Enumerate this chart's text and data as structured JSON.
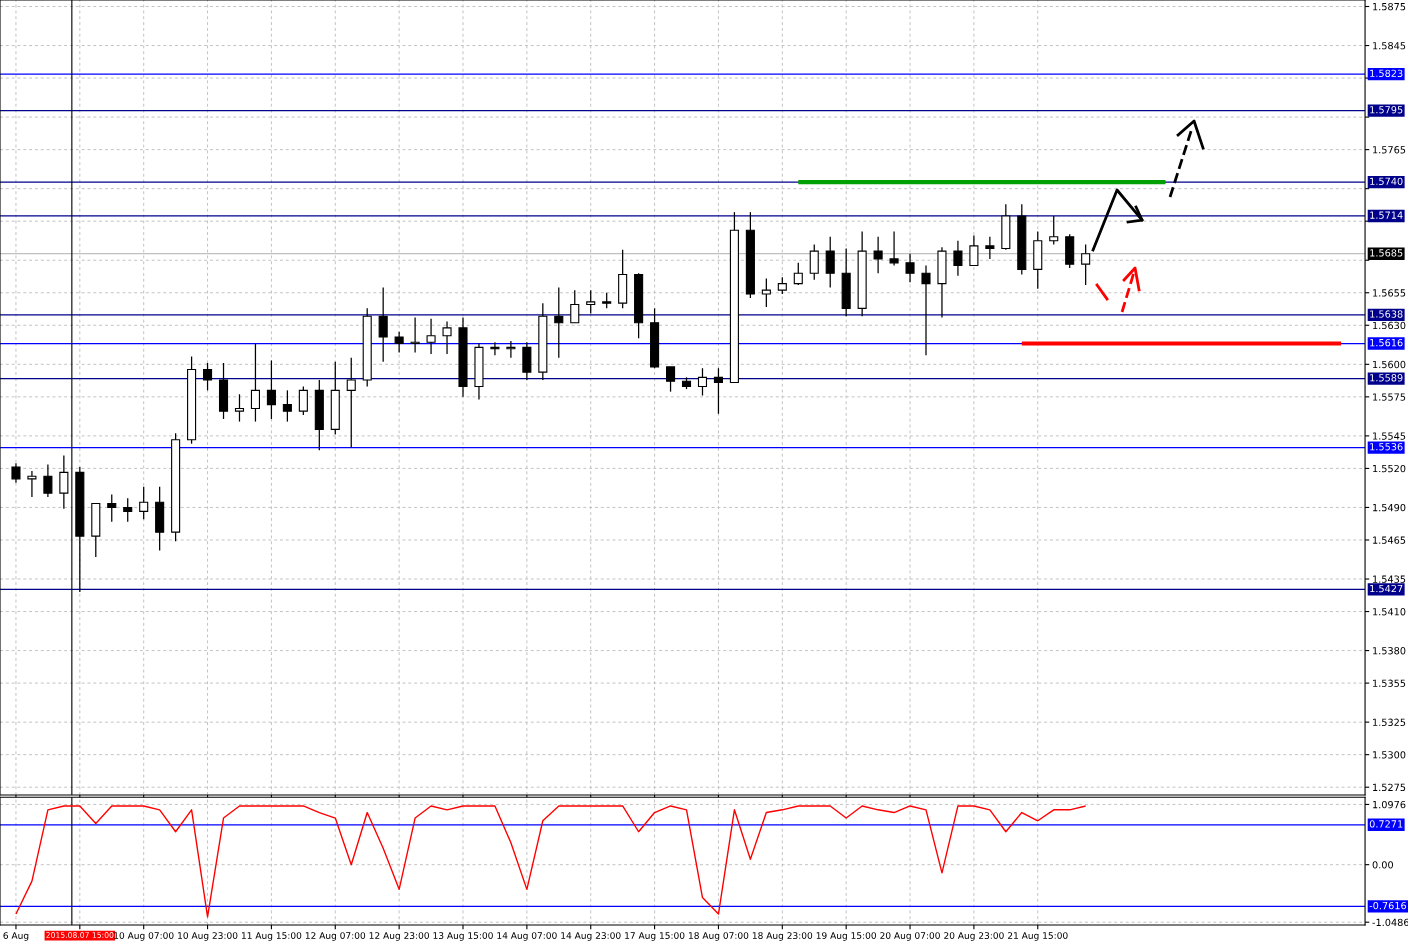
{
  "chart_data": [
    {
      "type": "candlestick",
      "tick_labels": "y",
      "grid": true,
      "categories": [
        "6 Aug",
        null,
        null,
        null,
        "2015.08.07 15:00",
        null,
        null,
        null,
        "10 Aug 07:00",
        null,
        null,
        null,
        "10 Aug 23:00",
        null,
        null,
        null,
        "11 Aug 15:00",
        null,
        null,
        null,
        "12 Aug 07:00",
        null,
        null,
        null,
        "12 Aug 23:00",
        null,
        null,
        null,
        "13 Aug 15:00",
        null,
        null,
        null,
        "14 Aug 07:00",
        null,
        null,
        null,
        "14 Aug 23:00",
        null,
        null,
        null,
        "17 Aug 15:00",
        null,
        null,
        null,
        "18 Aug 07:00",
        null,
        null,
        null,
        "18 Aug 23:00",
        null,
        null,
        null,
        "19 Aug 15:00",
        null,
        null,
        null,
        "20 Aug 07:00",
        null,
        null,
        null,
        "20 Aug 23:00",
        null,
        null,
        null,
        "21 Aug 15:00",
        null,
        null,
        null,
        null,
        null,
        null,
        null,
        null,
        null,
        null,
        null,
        null,
        null,
        null,
        null,
        null,
        null,
        null,
        null,
        null
      ],
      "ohlc": [
        [
          1.5521,
          1.5524,
          1.5509,
          1.5512
        ],
        [
          1.5512,
          1.5518,
          1.5498,
          1.5514
        ],
        [
          1.5514,
          1.5523,
          1.5498,
          1.5501
        ],
        [
          1.5501,
          1.553,
          1.5489,
          1.5517
        ],
        [
          1.5517,
          1.5521,
          1.5425,
          1.5468
        ],
        [
          1.5468,
          1.5493,
          1.5452,
          1.5493
        ],
        [
          1.5493,
          1.55,
          1.5479,
          1.549
        ],
        [
          1.549,
          1.5497,
          1.5479,
          1.5487
        ],
        [
          1.5487,
          1.5506,
          1.5481,
          1.5494
        ],
        [
          1.5494,
          1.5506,
          1.5457,
          1.5471
        ],
        [
          1.5471,
          1.5547,
          1.5464,
          1.5542
        ],
        [
          1.5542,
          1.5606,
          1.5539,
          1.5596
        ],
        [
          1.5596,
          1.5601,
          1.558,
          1.5588
        ],
        [
          1.5588,
          1.5601,
          1.5558,
          1.5564
        ],
        [
          1.5564,
          1.5577,
          1.5556,
          1.5566
        ],
        [
          1.5566,
          1.5616,
          1.5556,
          1.558
        ],
        [
          1.558,
          1.5603,
          1.5558,
          1.5569
        ],
        [
          1.5569,
          1.558,
          1.5556,
          1.5564
        ],
        [
          1.5564,
          1.5583,
          1.5561,
          1.558
        ],
        [
          1.558,
          1.5588,
          1.5534,
          1.555
        ],
        [
          1.555,
          1.5602,
          1.5546,
          1.558
        ],
        [
          1.558,
          1.5605,
          1.5536,
          1.5588
        ],
        [
          1.5588,
          1.5643,
          1.5583,
          1.5637
        ],
        [
          1.5637,
          1.5659,
          1.5602,
          1.5621
        ],
        [
          1.5621,
          1.5625,
          1.5609,
          1.5616
        ],
        [
          1.5616,
          1.5636,
          1.5609,
          1.5617
        ],
        [
          1.5617,
          1.5635,
          1.5608,
          1.5622
        ],
        [
          1.5622,
          1.5633,
          1.5608,
          1.5628
        ],
        [
          1.5628,
          1.5636,
          1.5575,
          1.5583
        ],
        [
          1.5583,
          1.5616,
          1.5573,
          1.5613
        ],
        [
          1.5613,
          1.5617,
          1.5607,
          1.5612
        ],
        [
          1.5612,
          1.5618,
          1.5605,
          1.5613
        ],
        [
          1.5613,
          1.5617,
          1.5588,
          1.5594
        ],
        [
          1.5594,
          1.5647,
          1.5588,
          1.5637
        ],
        [
          1.5637,
          1.5659,
          1.5605,
          1.5632
        ],
        [
          1.5632,
          1.5657,
          1.5632,
          1.5646
        ],
        [
          1.5646,
          1.5657,
          1.5639,
          1.5648
        ],
        [
          1.5648,
          1.5655,
          1.5643,
          1.5647
        ],
        [
          1.5647,
          1.5688,
          1.5643,
          1.5669
        ],
        [
          1.5669,
          1.567,
          1.562,
          1.5632
        ],
        [
          1.5632,
          1.5643,
          1.5597,
          1.5598
        ],
        [
          1.5598,
          1.5598,
          1.5579,
          1.5587
        ],
        [
          1.5587,
          1.559,
          1.5581,
          1.5583
        ],
        [
          1.5583,
          1.5597,
          1.5576,
          1.559
        ],
        [
          1.559,
          1.5597,
          1.5562,
          1.5586
        ],
        [
          1.5586,
          1.5717,
          1.5586,
          1.5703
        ],
        [
          1.5703,
          1.5717,
          1.5651,
          1.5654
        ],
        [
          1.5654,
          1.5666,
          1.5644,
          1.5657
        ],
        [
          1.5657,
          1.5667,
          1.5654,
          1.5662
        ],
        [
          1.5662,
          1.5678,
          1.5661,
          1.567
        ],
        [
          1.567,
          1.5692,
          1.5665,
          1.5687
        ],
        [
          1.5687,
          1.5698,
          1.5659,
          1.567
        ],
        [
          1.567,
          1.5689,
          1.5637,
          1.5643
        ],
        [
          1.5643,
          1.5702,
          1.5637,
          1.5687
        ],
        [
          1.5687,
          1.5698,
          1.567,
          1.5681
        ],
        [
          1.5681,
          1.5702,
          1.5676,
          1.5678
        ],
        [
          1.5678,
          1.5685,
          1.5663,
          1.567
        ],
        [
          1.567,
          1.5676,
          1.5607,
          1.5662
        ],
        [
          1.5662,
          1.569,
          1.5636,
          1.5687
        ],
        [
          1.5687,
          1.5695,
          1.5668,
          1.5676
        ],
        [
          1.5676,
          1.5699,
          1.5676,
          1.5691
        ],
        [
          1.5691,
          1.5698,
          1.5681,
          1.5689
        ],
        [
          1.5689,
          1.5723,
          1.5688,
          1.5714
        ],
        [
          1.5714,
          1.5723,
          1.5669,
          1.5673
        ],
        [
          1.5673,
          1.5702,
          1.5658,
          1.5695
        ],
        [
          1.5695,
          1.5714,
          1.5692,
          1.5698
        ],
        [
          1.5698,
          1.57,
          1.5674,
          1.5677
        ],
        [
          1.5677,
          1.5692,
          1.5661,
          1.5685
        ],
        null,
        null,
        null,
        null,
        null,
        null,
        null,
        null,
        null,
        null,
        null,
        null,
        null,
        null,
        null,
        null,
        null
      ],
      "series": [
        {
          "type": "line",
          "color": "#00a000",
          "values": [
            null,
            null,
            null,
            null,
            null,
            null,
            null,
            null,
            null,
            null,
            null,
            null,
            null,
            null,
            null,
            null,
            null,
            null,
            null,
            null,
            null,
            null,
            null,
            null,
            null,
            null,
            null,
            null,
            null,
            null,
            null,
            null,
            null,
            null,
            null,
            null,
            null,
            null,
            null,
            null,
            null,
            null,
            null,
            null,
            null,
            null,
            null,
            null,
            null,
            1.574,
            1.574,
            1.574,
            1.574,
            1.574,
            1.574,
            1.574,
            1.574,
            1.574,
            1.574,
            1.574,
            1.574,
            1.574,
            1.574,
            1.574,
            1.574,
            1.574,
            1.574,
            1.574,
            1.574,
            1.574,
            1.574,
            1.574,
            1.574,
            null,
            null,
            null,
            null,
            null,
            null,
            null,
            null,
            null,
            null,
            null,
            null
          ]
        },
        {
          "type": "line",
          "color": "#ff0000",
          "values": [
            null,
            null,
            null,
            null,
            null,
            null,
            null,
            null,
            null,
            null,
            null,
            null,
            null,
            null,
            null,
            null,
            null,
            null,
            null,
            null,
            null,
            null,
            null,
            null,
            null,
            null,
            null,
            null,
            null,
            null,
            null,
            null,
            null,
            null,
            null,
            null,
            null,
            null,
            null,
            null,
            null,
            null,
            null,
            null,
            null,
            null,
            null,
            null,
            null,
            null,
            null,
            null,
            null,
            null,
            null,
            null,
            null,
            null,
            null,
            null,
            null,
            null,
            null,
            1.5616,
            1.5616,
            1.5616,
            1.5616,
            1.5616,
            1.5616,
            1.5616,
            1.5616,
            1.5616,
            1.5616,
            1.5616,
            1.5616,
            1.5616,
            1.5616,
            1.5616,
            1.5616,
            1.5616,
            1.5616,
            1.5616,
            1.5616,
            1.5616,
            null
          ]
        }
      ],
      "ylim": [
        1.5269,
        1.588
      ],
      "yticks": [
        1.5875,
        1.5845,
        {
          "value": 1.582,
          "label": null
        },
        {
          "value": 1.579,
          "label": null
        },
        1.5765,
        {
          "value": 1.5735,
          "label": null
        },
        {
          "value": 1.571,
          "label": null
        },
        {
          "value": 1.568,
          "label": null
        },
        1.5655,
        {
          "value": 1.563,
          "label": "1.5630"
        },
        {
          "value": 1.56,
          "label": "1.5600"
        },
        1.5575,
        1.5545,
        {
          "value": 1.552,
          "label": "1.5520"
        },
        {
          "value": 1.549,
          "label": "1.5490"
        },
        1.5465,
        1.5435,
        {
          "value": 1.541,
          "label": "1.5410"
        },
        {
          "value": 1.538,
          "label": "1.5380"
        },
        1.5355,
        1.5325,
        {
          "value": 1.53,
          "label": "1.5300"
        },
        1.5275
      ],
      "ref_lines": [
        {
          "axis": "y",
          "value": 1.5823,
          "label": "1.5823",
          "color": "#0000ff"
        },
        {
          "axis": "y",
          "value": 1.5795,
          "label": "1.5795",
          "color": "#00008b"
        },
        {
          "axis": "y",
          "value": 1.574,
          "label": "1.5740",
          "color": "#00008b"
        },
        {
          "axis": "y",
          "value": 1.5714,
          "label": "1.5714",
          "color": "#00008b"
        },
        {
          "axis": "y",
          "value": 1.5685,
          "label": "1.5685",
          "color": "#c0c0c0"
        },
        {
          "axis": "y",
          "value": 1.5638,
          "label": "1.5638",
          "color": "#00008b"
        },
        {
          "axis": "y",
          "value": 1.5616,
          "label": "1.5616",
          "color": "#0000ff"
        },
        {
          "axis": "y",
          "value": 1.5589,
          "label": "1.5589",
          "color": "#00008b"
        },
        {
          "axis": "y",
          "value": 1.5536,
          "label": "1.5536",
          "color": "#0000ff"
        },
        {
          "axis": "y",
          "value": 1.5427,
          "label": "1.5427",
          "color": "#00008b"
        },
        {
          "axis": "x",
          "value": "2015.08.07 15:00",
          "color": "#000000"
        }
      ]
    },
    {
      "type": "line",
      "grid": true,
      "categories": [
        "6 Aug",
        null,
        null,
        null,
        "2015.08.07 15:00",
        null,
        null,
        null,
        "10 Aug 07:00",
        null,
        null,
        null,
        "10 Aug 23:00",
        null,
        null,
        null,
        "11 Aug 15:00",
        null,
        null,
        null,
        "12 Aug 07:00",
        null,
        null,
        null,
        "12 Aug 23:00",
        null,
        null,
        null,
        "13 Aug 15:00",
        null,
        null,
        null,
        "14 Aug 07:00",
        null,
        null,
        null,
        "14 Aug 23:00",
        null,
        null,
        null,
        "17 Aug 15:00",
        null,
        null,
        null,
        "18 Aug 07:00",
        null,
        null,
        null,
        "18 Aug 23:00",
        null,
        null,
        null,
        "19 Aug 15:00",
        null,
        null,
        null,
        "20 Aug 07:00",
        null,
        null,
        null,
        "20 Aug 23:00",
        null,
        null,
        null,
        "21 Aug 15:00",
        null,
        null,
        null,
        null,
        null,
        null,
        null,
        null,
        null,
        null,
        null,
        null,
        null,
        null,
        null,
        null,
        null,
        null,
        null,
        null
      ],
      "series": [
        {
          "color": "#ff0000",
          "values": [
            -0.9,
            -0.3,
            1.0,
            1.07,
            1.07,
            0.75,
            1.07,
            1.07,
            1.07,
            1.0,
            0.6,
            1.0,
            -0.95,
            0.85,
            1.07,
            1.07,
            1.07,
            1.07,
            1.07,
            0.95,
            0.85,
            0.0,
            0.95,
            0.3,
            -0.45,
            0.85,
            1.07,
            1.0,
            1.07,
            1.07,
            1.07,
            0.4,
            -0.45,
            0.8,
            1.07,
            1.07,
            1.07,
            1.07,
            1.07,
            0.6,
            0.95,
            1.07,
            1.0,
            -0.6,
            -0.9,
            1.0,
            0.1,
            0.95,
            1.0,
            1.07,
            1.07,
            1.07,
            0.85,
            1.07,
            1.0,
            0.95,
            1.07,
            1.0,
            -0.15,
            1.07,
            1.07,
            1.0,
            0.6,
            0.95,
            0.8,
            1.0,
            1.0,
            1.07,
            null,
            null,
            null,
            null,
            null,
            null,
            null,
            null,
            null,
            null,
            null,
            null,
            null,
            null,
            null,
            null,
            null
          ]
        }
      ],
      "ylim": [
        -1.1,
        1.23
      ],
      "yticks": [
        1.0976,
        {
          "value": 0,
          "label": "0.00"
        },
        -1.0486
      ],
      "ref_lines": [
        {
          "axis": "y",
          "value": 0.7271,
          "label": "0.7271",
          "color": "#0000ff"
        },
        {
          "axis": "y",
          "value": -0.7616,
          "label": "-0.7616",
          "color": "#0000ff"
        },
        {
          "axis": "x",
          "value": "2015.08.07 15:00",
          "color": "#000000"
        }
      ]
    }
  ]
}
